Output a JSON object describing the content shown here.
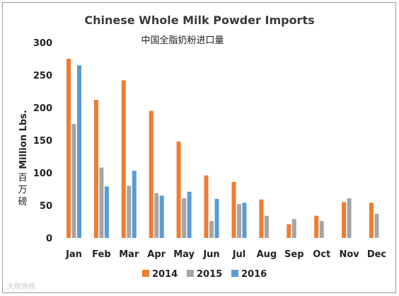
{
  "chart_data": {
    "type": "bar",
    "title": "Chinese Whole Milk Powder Imports",
    "subtitle": "中国全脂奶粉进口量",
    "ylabel": "Million Lbs.",
    "ylabel_cn": "百万磅",
    "xlabel": "",
    "ylim": [
      0,
      300
    ],
    "yticks": [
      "0",
      "50",
      "100",
      "150",
      "200",
      "250",
      "300"
    ],
    "categories": [
      "Jan",
      "Feb",
      "Mar",
      "Apr",
      "May",
      "Jun",
      "Jul",
      "Aug",
      "Sep",
      "Oct",
      "Nov",
      "Dec"
    ],
    "series": [
      {
        "name": "2014",
        "color": "#ED7D31",
        "values": [
          275,
          212,
          242,
          195,
          148,
          96,
          86,
          59,
          21,
          34,
          55,
          54
        ]
      },
      {
        "name": "2015",
        "color": "#A5A5A5",
        "values": [
          175,
          108,
          80,
          69,
          61,
          26,
          52,
          34,
          29,
          26,
          61,
          37
        ]
      },
      {
        "name": "2016",
        "color": "#5B9BD5",
        "values": [
          265,
          79,
          103,
          65,
          71,
          60,
          54,
          null,
          null,
          null,
          null,
          null
        ]
      }
    ],
    "grid": false,
    "legend": "bottom"
  },
  "watermark": "大牧扬扬"
}
